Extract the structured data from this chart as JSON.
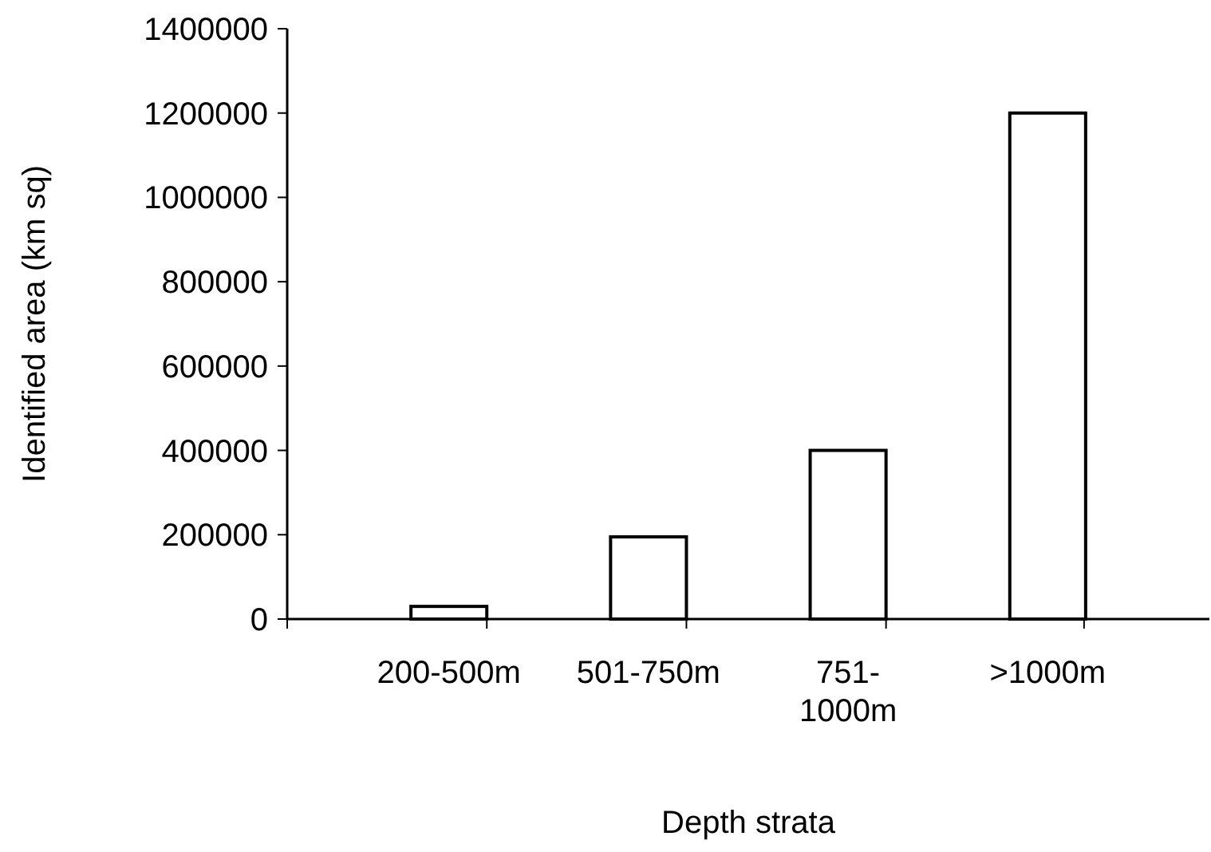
{
  "chart_data": {
    "type": "bar",
    "xlabel": "Depth strata",
    "ylabel": "Identified area (km sq)",
    "categories": [
      "200-500m",
      "501-750m",
      "751-1000m",
      ">1000m"
    ],
    "values": [
      30000,
      195000,
      400000,
      1200000
    ],
    "color": "#ffffff",
    "ylim": [
      0,
      1400000
    ],
    "yticks": [
      0,
      200000,
      400000,
      600000,
      800000,
      1000000,
      1200000,
      1400000
    ],
    "grid": false
  }
}
